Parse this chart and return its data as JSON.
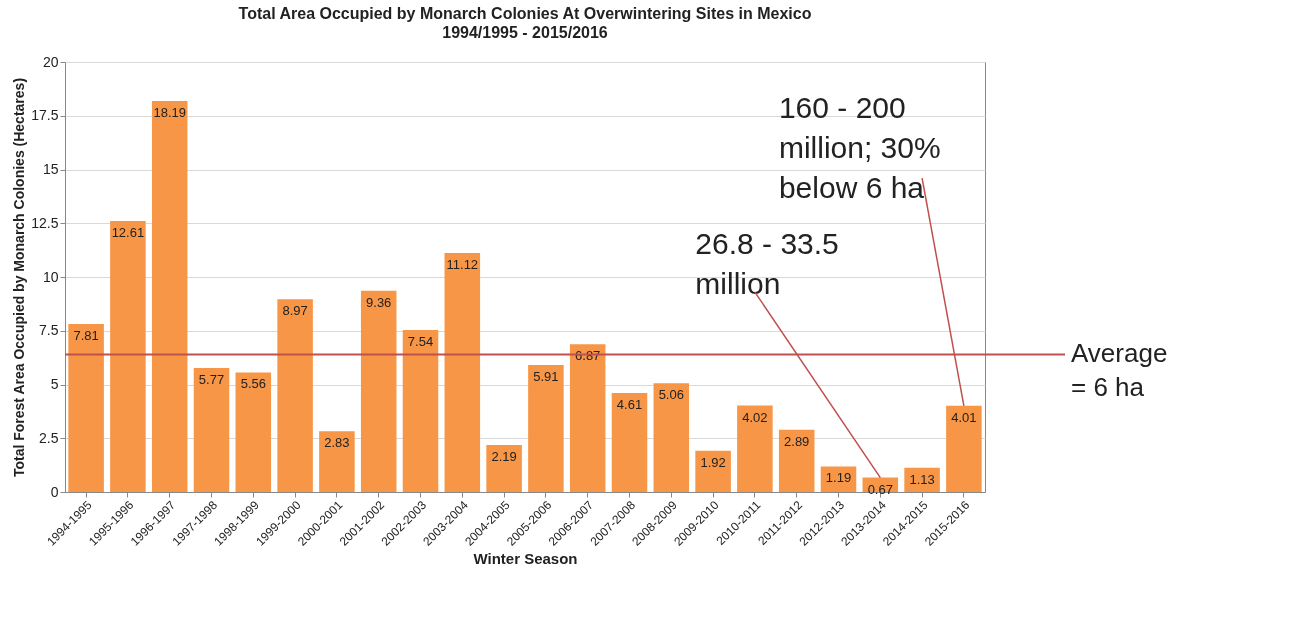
{
  "chart_data": {
    "type": "bar",
    "title": "Total Area Occupied by Monarch Colonies At Overwintering Sites in Mexico",
    "subtitle": "1994/1995 - 2015/2016",
    "xlabel": "Winter Season",
    "ylabel": "Total Forest Area Occupied by Monarch Colonies (Hectares)",
    "categories": [
      "1994-1995",
      "1995-1996",
      "1996-1997",
      "1997-1998",
      "1998-1999",
      "1999-2000",
      "2000-2001",
      "2001-2002",
      "2002-2003",
      "2003-2004",
      "2004-2005",
      "2005-2006",
      "2006-2007",
      "2007-2008",
      "2008-2009",
      "2009-2010",
      "2010-2011",
      "2011-2012",
      "2012-2013",
      "2013-2014",
      "2014-2015",
      "2015-2016"
    ],
    "values": [
      7.81,
      12.61,
      18.19,
      5.77,
      5.56,
      8.97,
      2.83,
      9.36,
      7.54,
      11.12,
      2.19,
      5.91,
      6.87,
      4.61,
      5.06,
      1.92,
      4.02,
      2.89,
      1.19,
      0.67,
      1.13,
      4.01
    ],
    "color": "#f79646",
    "data_labels": true,
    "ylim": [
      0,
      20
    ],
    "yticks": [
      0,
      {
        "value": 2.5,
        "label": "2.5"
      },
      5,
      {
        "value": 7.5,
        "label": "7.5"
      },
      10,
      {
        "value": 12.5,
        "label": "12.5"
      },
      15,
      {
        "value": 17.5,
        "label": "17.5"
      },
      20
    ],
    "grid": "y",
    "ref_lines": [
      {
        "axis": "y",
        "value": 6.4,
        "label": "Average\n= 6  ha",
        "color": "#c0504d"
      }
    ],
    "annotations": [
      {
        "text": "26.8 - 33.5\nmillion",
        "x": "2013-2014",
        "y": 0.67
      },
      {
        "text": "160 - 200\nmillion; 30%\nbelow 6 ha",
        "x": "2015-2016",
        "y": 4.01
      }
    ]
  }
}
